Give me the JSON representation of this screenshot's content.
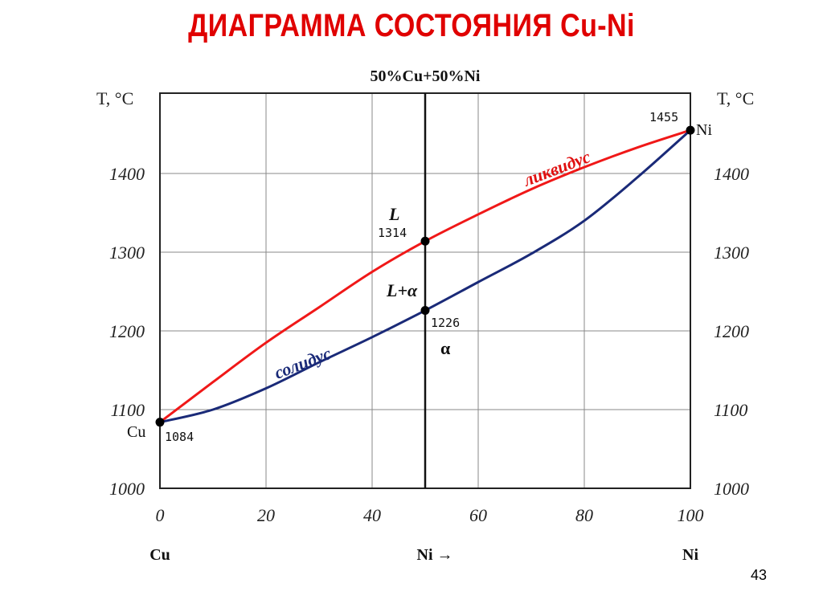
{
  "title": "ДИАГРАММА СОСТОЯНИЯ Cu-Ni",
  "page_number": "43",
  "colors": {
    "title": "#e00000",
    "liquidus": "#f01818",
    "solidus": "#1a2a78",
    "grid": "#888888"
  },
  "chart_data": {
    "type": "line",
    "xlim": [
      0,
      100
    ],
    "ylim": [
      1000,
      1500
    ],
    "x_ticks": [
      "0",
      "20",
      "40",
      "60",
      "80",
      "100"
    ],
    "y_ticks": [
      "1000",
      "1100",
      "1200",
      "1300",
      "1400"
    ],
    "y_axis_label_left": "T, °C",
    "y_axis_label_right": "T, °C",
    "grid": true,
    "bottom_labels": {
      "left": "Cu",
      "center": "Ni →",
      "right": "Ni"
    },
    "vertical_line": {
      "x": 50,
      "label": "50%Cu+50%Ni"
    },
    "series": [
      {
        "name": "ликвидус",
        "x": [
          0,
          10,
          20,
          30,
          40,
          50,
          60,
          70,
          80,
          90,
          100
        ],
        "y": [
          1084,
          1135,
          1185,
          1230,
          1275,
          1314,
          1348,
          1380,
          1408,
          1433,
          1455
        ]
      },
      {
        "name": "солидус",
        "x": [
          0,
          10,
          20,
          30,
          40,
          50,
          60,
          70,
          80,
          90,
          100
        ],
        "y": [
          1084,
          1100,
          1127,
          1160,
          1192,
          1226,
          1262,
          1298,
          1340,
          1395,
          1455
        ]
      }
    ],
    "points": [
      {
        "x": 0,
        "y": 1084,
        "label": "1084",
        "element": "Cu"
      },
      {
        "x": 50,
        "y": 1314,
        "label": "1314"
      },
      {
        "x": 50,
        "y": 1226,
        "label": "1226"
      },
      {
        "x": 100,
        "y": 1455,
        "label": "1455",
        "element": "Ni"
      }
    ],
    "region_labels": [
      "L",
      "L+α",
      "α"
    ]
  }
}
